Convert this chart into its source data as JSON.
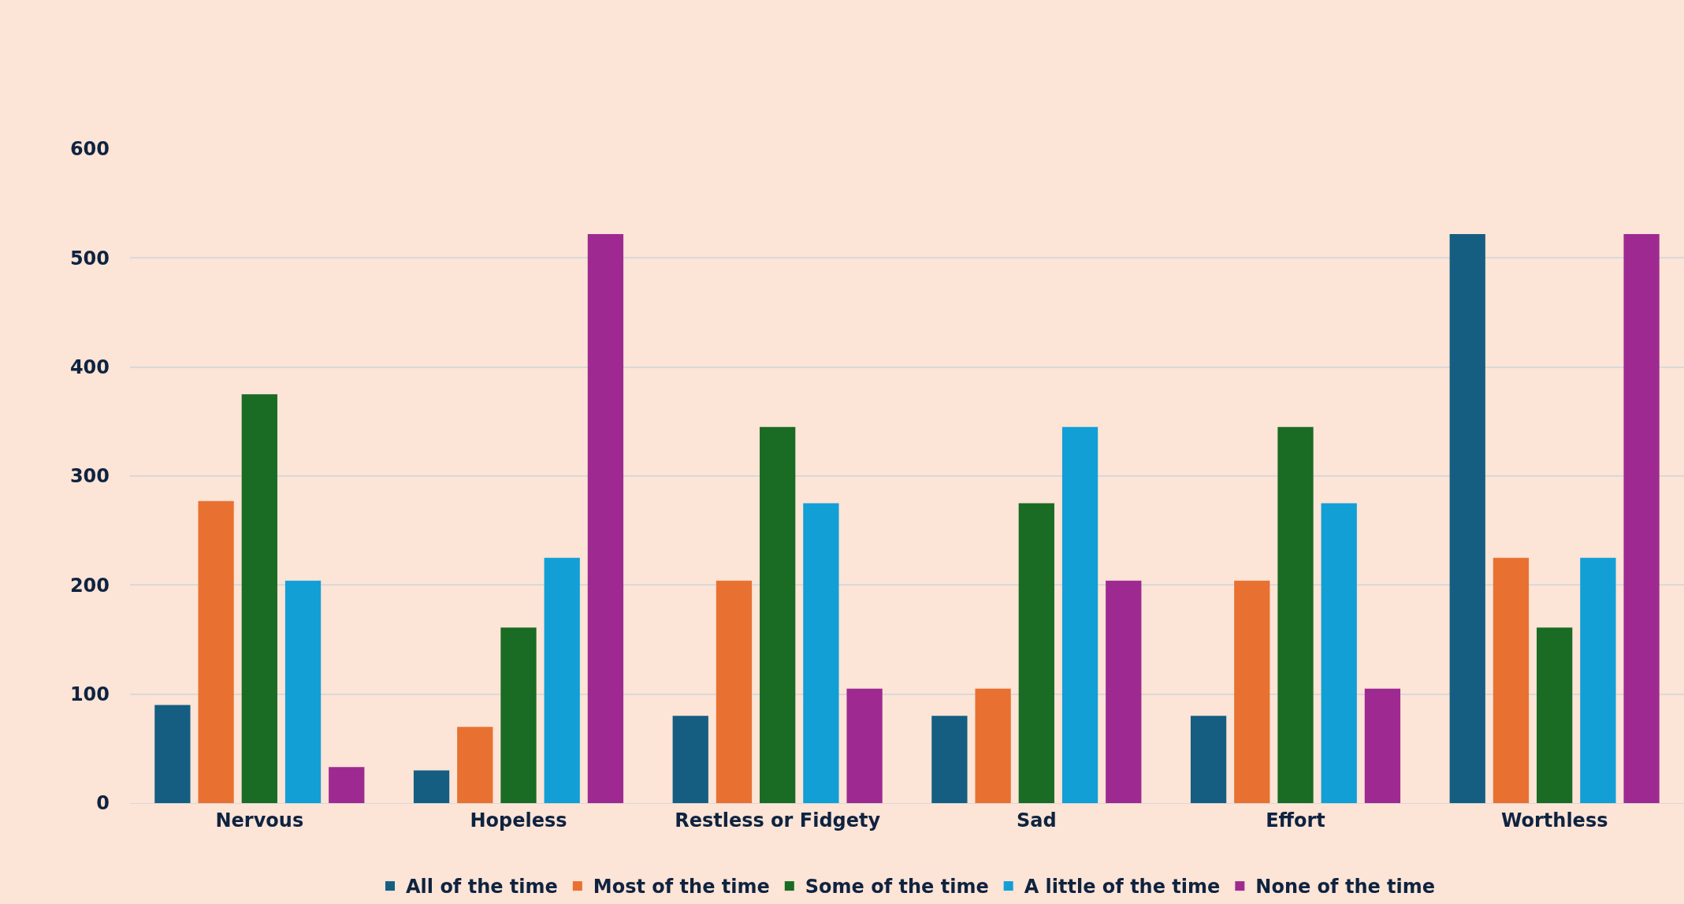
{
  "chart_data": {
    "type": "bar",
    "categories": [
      "Nervous",
      "Hopeless",
      "Restless or Fidgety",
      "Sad",
      "Effort",
      "Worthless"
    ],
    "series": [
      {
        "name": "All of the time",
        "color": "#155e82",
        "values": [
          90,
          30,
          80,
          80,
          80,
          522
        ]
      },
      {
        "name": "Most of the time",
        "color": "#e87131",
        "values": [
          277,
          70,
          204,
          105,
          204,
          225
        ]
      },
      {
        "name": "Some of the time",
        "color": "#1a6b23",
        "values": [
          375,
          161,
          345,
          275,
          345,
          161
        ]
      },
      {
        "name": "A little of the time",
        "color": "#119fd6",
        "values": [
          204,
          225,
          275,
          345,
          275,
          225
        ]
      },
      {
        "name": "None of the time",
        "color": "#9e2a91",
        "values": [
          33,
          522,
          105,
          204,
          105,
          522
        ]
      }
    ],
    "ylim": [
      0,
      600
    ],
    "yticks": [
      0,
      100,
      200,
      300,
      400,
      500,
      600
    ],
    "grid": "y",
    "legend": "bottom"
  }
}
